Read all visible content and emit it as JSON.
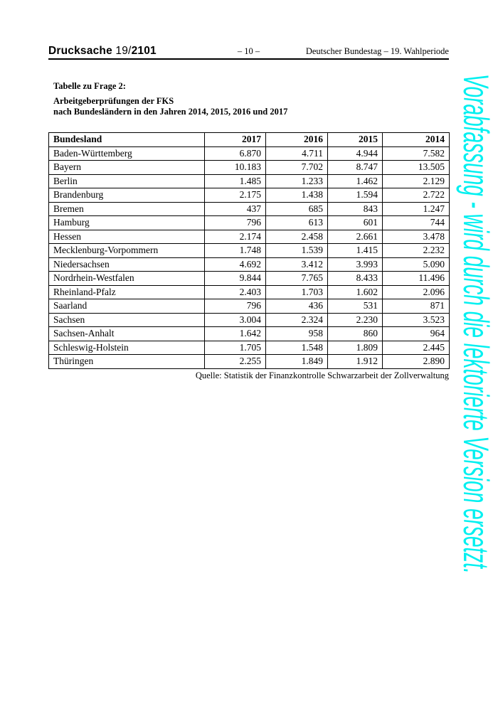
{
  "page": {
    "header": {
      "doc_label": "Drucksache",
      "doc_number_light": "19/",
      "doc_number_bold": "2101",
      "page_number": "– 10 –",
      "right_text": "Deutscher Bundestag – 19. Wahlperiode"
    },
    "title": {
      "line1": "Tabelle zu Frage 2:",
      "line2": "Arbeitgeberprüfungen der FKS",
      "line3": "nach Bundesländern in den Jahren 2014, 2015, 2016 und 2017"
    },
    "source_note": "Quelle: Statistik der Finanzkontrolle Schwarzarbeit der Zollverwaltung",
    "watermark": {
      "text": "Vorabfassung - wird durch die lektorierte Version ersetzt.",
      "color": "#00F0F0"
    }
  },
  "chart_data": {
    "type": "table",
    "title": "Arbeitgeberprüfungen der FKS nach Bundesländern in den Jahren 2014, 2015, 2016 und 2017",
    "columns": [
      "Bundesland",
      "2017",
      "2016",
      "2015",
      "2014"
    ],
    "rows": [
      [
        "Baden-Württemberg",
        "6.870",
        "4.711",
        "4.944",
        "7.582"
      ],
      [
        "Bayern",
        "10.183",
        "7.702",
        "8.747",
        "13.505"
      ],
      [
        "Berlin",
        "1.485",
        "1.233",
        "1.462",
        "2.129"
      ],
      [
        "Brandenburg",
        "2.175",
        "1.438",
        "1.594",
        "2.722"
      ],
      [
        "Bremen",
        "437",
        "685",
        "843",
        "1.247"
      ],
      [
        "Hamburg",
        "796",
        "613",
        "601",
        "744"
      ],
      [
        "Hessen",
        "2.174",
        "2.458",
        "2.661",
        "3.478"
      ],
      [
        "Mecklenburg-Vorpommern",
        "1.748",
        "1.539",
        "1.415",
        "2.232"
      ],
      [
        "Niedersachsen",
        "4.692",
        "3.412",
        "3.993",
        "5.090"
      ],
      [
        "Nordrhein-Westfalen",
        "9.844",
        "7.765",
        "8.433",
        "11.496"
      ],
      [
        "Rheinland-Pfalz",
        "2.403",
        "1.703",
        "1.602",
        "2.096"
      ],
      [
        "Saarland",
        "796",
        "436",
        "531",
        "871"
      ],
      [
        "Sachsen",
        "3.004",
        "2.324",
        "2.230",
        "3.523"
      ],
      [
        "Sachsen-Anhalt",
        "1.642",
        "958",
        "860",
        "964"
      ],
      [
        "Schleswig-Holstein",
        "1.705",
        "1.548",
        "1.809",
        "2.445"
      ],
      [
        "Thüringen",
        "2.255",
        "1.849",
        "1.912",
        "2.890"
      ]
    ]
  }
}
